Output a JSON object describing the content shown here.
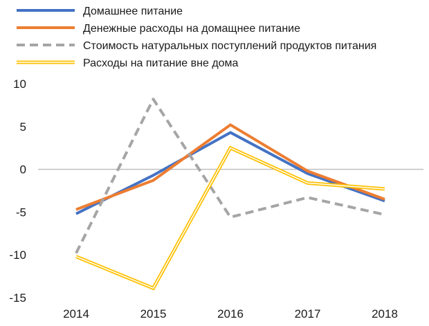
{
  "chart_data": {
    "type": "line",
    "title": "",
    "xlabel": "",
    "ylabel": "",
    "categories": [
      "2014",
      "2015",
      "2016",
      "2017",
      "2018"
    ],
    "ylim": [
      -15,
      10
    ],
    "yticks": [
      "10",
      "5",
      "0",
      "-5",
      "-10",
      "-15"
    ],
    "grid": false,
    "legend_position": "top",
    "series": [
      {
        "name": "Домашнее питание",
        "values": [
          -5.2,
          -0.7,
          4.3,
          -0.5,
          -3.7
        ],
        "color": "#4472C4",
        "style": "solid"
      },
      {
        "name": "Денежные расходы на домащнее питание",
        "values": [
          -4.7,
          -1.3,
          5.2,
          -0.2,
          -3.5
        ],
        "color": "#ED7D31",
        "style": "solid"
      },
      {
        "name": "Стоимость натуральных поступлений продуктов питания",
        "values": [
          -9.8,
          8.2,
          -5.6,
          -3.3,
          -5.3
        ],
        "color": "#A5A5A5",
        "style": "dashed"
      },
      {
        "name": "Расходы на питание вне дома",
        "values": [
          -10.2,
          -13.9,
          2.5,
          -1.6,
          -2.3
        ],
        "color": "#FFC000",
        "style": "double"
      }
    ]
  }
}
